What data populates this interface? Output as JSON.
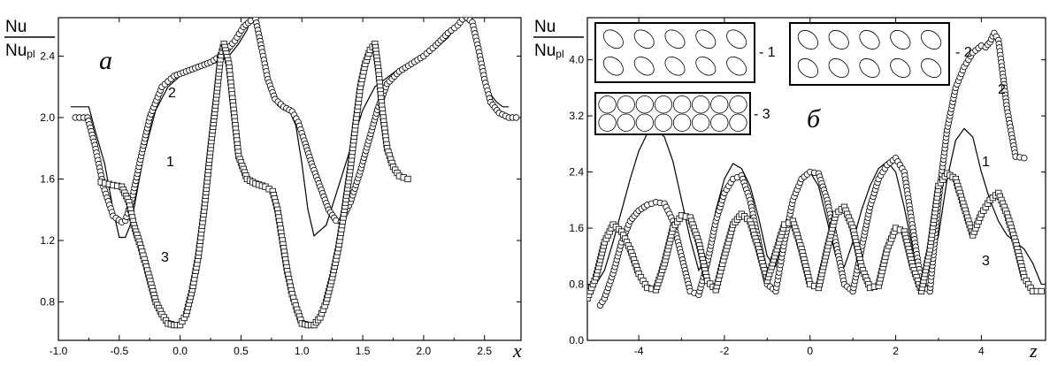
{
  "chart_data": [
    {
      "type": "line",
      "panel_label": "a",
      "x_axis_symbol": "x",
      "y_label": {
        "numerator": "Nu",
        "denominator_main": "Nu",
        "denominator_sub": "pl"
      },
      "xlim": [
        -1.0,
        2.8
      ],
      "ylim": [
        0.55,
        2.65
      ],
      "xticks": [
        -1.0,
        -0.5,
        0.0,
        0.5,
        1.0,
        1.5,
        2.0,
        2.5
      ],
      "xtick_labels": [
        "-1.0",
        "-0.5",
        "0.0",
        "0.5",
        "1.0",
        "1.5",
        "2.0",
        "2.5"
      ],
      "yticks": [
        0.8,
        1.2,
        1.6,
        2.0,
        2.4
      ],
      "ytick_labels": [
        "0.8",
        "1.2",
        "1.6",
        "2.0",
        "2.4"
      ],
      "series": [
        {
          "label": "1",
          "style": "solid",
          "x": [
            -0.9,
            -0.75,
            -0.7,
            -0.62,
            -0.55,
            -0.5,
            -0.45,
            -0.4,
            -0.3,
            -0.2,
            -0.1,
            0.0,
            0.1,
            0.2,
            0.3,
            0.4,
            0.48,
            0.55,
            0.6,
            0.65,
            0.7,
            0.75,
            0.8,
            0.85,
            0.9,
            0.95,
            1.0,
            1.05,
            1.1,
            1.2,
            1.3,
            1.4,
            1.5,
            1.6,
            1.7,
            1.8,
            1.9,
            2.0,
            2.1,
            2.2,
            2.3,
            2.35,
            2.4,
            2.45,
            2.5,
            2.55,
            2.6,
            2.65,
            2.7
          ],
          "y": [
            2.07,
            2.07,
            1.92,
            1.7,
            1.4,
            1.22,
            1.22,
            1.32,
            1.75,
            2.05,
            2.2,
            2.27,
            2.3,
            2.33,
            2.36,
            2.4,
            2.48,
            2.57,
            2.69,
            2.52,
            2.3,
            2.17,
            2.08,
            2.05,
            2.04,
            1.95,
            1.7,
            1.4,
            1.23,
            1.3,
            1.55,
            1.8,
            2.05,
            2.2,
            2.26,
            2.32,
            2.36,
            2.4,
            2.45,
            2.52,
            2.62,
            2.69,
            2.61,
            2.45,
            2.28,
            2.15,
            2.1,
            2.07,
            2.07
          ]
        },
        {
          "label": "2",
          "style": "circles",
          "x": [
            -0.86,
            -0.76,
            -0.7,
            -0.63,
            -0.55,
            -0.48,
            -0.45,
            -0.4,
            -0.32,
            -0.25,
            -0.15,
            -0.05,
            0.05,
            0.15,
            0.25,
            0.35,
            0.45,
            0.52,
            0.58,
            0.62,
            0.67,
            0.72,
            0.78,
            0.85,
            0.92,
            0.97,
            1.02,
            1.08,
            1.15,
            1.22,
            1.28,
            1.32,
            1.4,
            1.48,
            1.55,
            1.62,
            1.7,
            1.8,
            1.9,
            2.0,
            2.1,
            2.2,
            2.28,
            2.34,
            2.4,
            2.45,
            2.5,
            2.55,
            2.62,
            2.7,
            2.76
          ],
          "y": [
            2.0,
            2.0,
            1.82,
            1.55,
            1.36,
            1.32,
            1.33,
            1.45,
            1.75,
            2.0,
            2.2,
            2.27,
            2.3,
            2.33,
            2.36,
            2.41,
            2.5,
            2.59,
            2.63,
            2.64,
            2.45,
            2.25,
            2.12,
            2.07,
            2.04,
            1.97,
            1.85,
            1.7,
            1.55,
            1.4,
            1.33,
            1.32,
            1.45,
            1.65,
            1.85,
            2.05,
            2.22,
            2.3,
            2.35,
            2.4,
            2.47,
            2.55,
            2.6,
            2.66,
            2.62,
            2.45,
            2.25,
            2.1,
            2.03,
            2.0,
            2.0
          ]
        },
        {
          "label": "3",
          "style": "squares",
          "x": [
            -0.65,
            -0.55,
            -0.48,
            -0.42,
            -0.38,
            -0.32,
            -0.26,
            -0.2,
            -0.15,
            -0.1,
            -0.05,
            0.0,
            0.05,
            0.1,
            0.15,
            0.2,
            0.25,
            0.3,
            0.33,
            0.36,
            0.4,
            0.44,
            0.48,
            0.55,
            0.62,
            0.7,
            0.76,
            0.8,
            0.84,
            0.88,
            0.92,
            0.96,
            1.0,
            1.05,
            1.1,
            1.15,
            1.2,
            1.25,
            1.3,
            1.35,
            1.4,
            1.44,
            1.48,
            1.52,
            1.56,
            1.6,
            1.63,
            1.66,
            1.7,
            1.75,
            1.8,
            1.87
          ],
          "y": [
            1.58,
            1.56,
            1.55,
            1.45,
            1.3,
            1.15,
            0.98,
            0.8,
            0.72,
            0.66,
            0.65,
            0.65,
            0.72,
            0.88,
            1.1,
            1.42,
            1.8,
            2.15,
            2.38,
            2.48,
            2.35,
            2.05,
            1.75,
            1.6,
            1.57,
            1.55,
            1.52,
            1.4,
            1.2,
            1.0,
            0.85,
            0.75,
            0.66,
            0.65,
            0.65,
            0.7,
            0.8,
            0.96,
            1.15,
            1.4,
            1.68,
            1.95,
            2.2,
            2.35,
            2.44,
            2.48,
            2.3,
            2.05,
            1.8,
            1.68,
            1.62,
            1.6
          ]
        }
      ]
    },
    {
      "type": "line",
      "panel_label": "б",
      "x_axis_symbol": "z",
      "y_label": {
        "numerator": "Nu",
        "denominator_main": "Nu",
        "denominator_sub": "pl"
      },
      "xlim": [
        -5.2,
        5.5
      ],
      "ylim": [
        0.0,
        4.6
      ],
      "xticks": [
        -4,
        -2,
        0,
        2,
        4
      ],
      "xtick_labels": [
        "-4",
        "-2",
        "0",
        "2",
        "4"
      ],
      "yticks": [
        0.0,
        0.8,
        1.6,
        2.4,
        3.2,
        4.0
      ],
      "ytick_labels": [
        "0.0",
        "0.8",
        "1.6",
        "2.4",
        "3.2",
        "4.0"
      ],
      "inset_labels": [
        "- 1",
        "- 2",
        "- 3"
      ],
      "series": [
        {
          "label": "1",
          "style": "solid",
          "x": [
            -5.2,
            -5.0,
            -4.8,
            -4.6,
            -4.4,
            -4.2,
            -4.0,
            -3.8,
            -3.6,
            -3.4,
            -3.2,
            -3.0,
            -2.8,
            -2.6,
            -2.4,
            -2.2,
            -2.0,
            -1.8,
            -1.6,
            -1.4,
            -1.2,
            -1.0,
            -0.8,
            -0.6,
            -0.4,
            -0.2,
            0.0,
            0.2,
            0.4,
            0.6,
            0.8,
            1.0,
            1.2,
            1.4,
            1.6,
            1.8,
            2.0,
            2.2,
            2.4,
            2.6,
            2.8,
            3.0,
            3.2,
            3.4,
            3.6,
            3.8,
            4.0,
            4.2,
            4.4,
            4.6,
            4.8,
            5.0,
            5.2,
            5.4
          ],
          "y": [
            0.7,
            0.8,
            1.0,
            1.4,
            1.85,
            2.3,
            2.7,
            2.95,
            3.02,
            2.9,
            2.55,
            2.0,
            1.45,
            1.0,
            1.2,
            1.85,
            2.3,
            2.52,
            2.45,
            2.2,
            1.75,
            1.2,
            1.05,
            1.6,
            2.05,
            2.3,
            2.4,
            2.2,
            1.7,
            1.2,
            1.05,
            1.4,
            1.85,
            2.2,
            2.45,
            2.55,
            2.4,
            1.9,
            1.3,
            0.9,
            1.0,
            1.5,
            2.3,
            2.85,
            3.02,
            2.9,
            2.4,
            2.0,
            1.7,
            1.5,
            1.4,
            1.3,
            1.1,
            0.8
          ]
        },
        {
          "label": "2",
          "style": "circles",
          "x": [
            -4.9,
            -4.8,
            -4.6,
            -4.4,
            -4.2,
            -4.0,
            -3.8,
            -3.6,
            -3.4,
            -3.2,
            -3.0,
            -2.8,
            -2.6,
            -2.4,
            -2.2,
            -2.0,
            -1.8,
            -1.6,
            -1.4,
            -1.2,
            -1.0,
            -0.8,
            -0.6,
            -0.4,
            -0.2,
            0.0,
            0.2,
            0.4,
            0.6,
            0.8,
            1.0,
            1.2,
            1.4,
            1.6,
            1.8,
            2.0,
            2.2,
            2.4,
            2.6,
            2.8,
            3.0,
            3.2,
            3.4,
            3.6,
            3.8,
            4.0,
            4.1,
            4.2,
            4.3,
            4.4,
            4.5,
            4.6,
            4.8,
            5.0
          ],
          "y": [
            0.5,
            0.6,
            0.95,
            1.4,
            1.7,
            1.85,
            1.93,
            1.97,
            1.95,
            1.7,
            1.2,
            0.7,
            0.65,
            1.1,
            1.7,
            2.1,
            2.3,
            2.35,
            2.0,
            1.4,
            0.8,
            0.7,
            1.4,
            2.0,
            2.3,
            2.4,
            2.38,
            2.0,
            1.4,
            0.8,
            0.7,
            1.3,
            1.9,
            2.3,
            2.5,
            2.6,
            2.4,
            1.6,
            0.8,
            0.7,
            2.0,
            3.0,
            3.6,
            3.9,
            4.1,
            4.2,
            4.18,
            4.25,
            4.38,
            4.28,
            3.8,
            3.3,
            2.62,
            2.6
          ]
        },
        {
          "label": "3",
          "style": "squares",
          "x": [
            -5.2,
            -5.0,
            -4.8,
            -4.6,
            -4.4,
            -4.2,
            -4.0,
            -3.8,
            -3.6,
            -3.4,
            -3.2,
            -3.0,
            -2.8,
            -2.6,
            -2.4,
            -2.2,
            -2.0,
            -1.8,
            -1.6,
            -1.4,
            -1.2,
            -1.0,
            -0.8,
            -0.6,
            -0.4,
            -0.2,
            0.0,
            0.2,
            0.4,
            0.6,
            0.8,
            1.0,
            1.2,
            1.4,
            1.6,
            1.8,
            2.0,
            2.2,
            2.4,
            2.6,
            2.8,
            3.0,
            3.2,
            3.4,
            3.6,
            3.8,
            4.0,
            4.2,
            4.4,
            4.6,
            4.8,
            5.0,
            5.2,
            5.4
          ],
          "y": [
            0.6,
            0.9,
            1.4,
            1.65,
            1.55,
            1.3,
            0.95,
            0.75,
            0.72,
            1.1,
            1.6,
            1.78,
            1.75,
            1.4,
            0.85,
            0.72,
            1.2,
            1.65,
            1.8,
            1.7,
            1.3,
            0.85,
            1.25,
            1.65,
            1.7,
            1.3,
            0.8,
            0.75,
            1.3,
            1.8,
            1.9,
            1.6,
            1.05,
            0.75,
            0.78,
            1.3,
            1.6,
            1.55,
            1.05,
            0.7,
            1.3,
            2.2,
            2.38,
            2.3,
            1.9,
            1.5,
            1.8,
            2.0,
            2.1,
            1.8,
            1.4,
            0.9,
            0.7,
            0.7
          ]
        }
      ]
    }
  ]
}
